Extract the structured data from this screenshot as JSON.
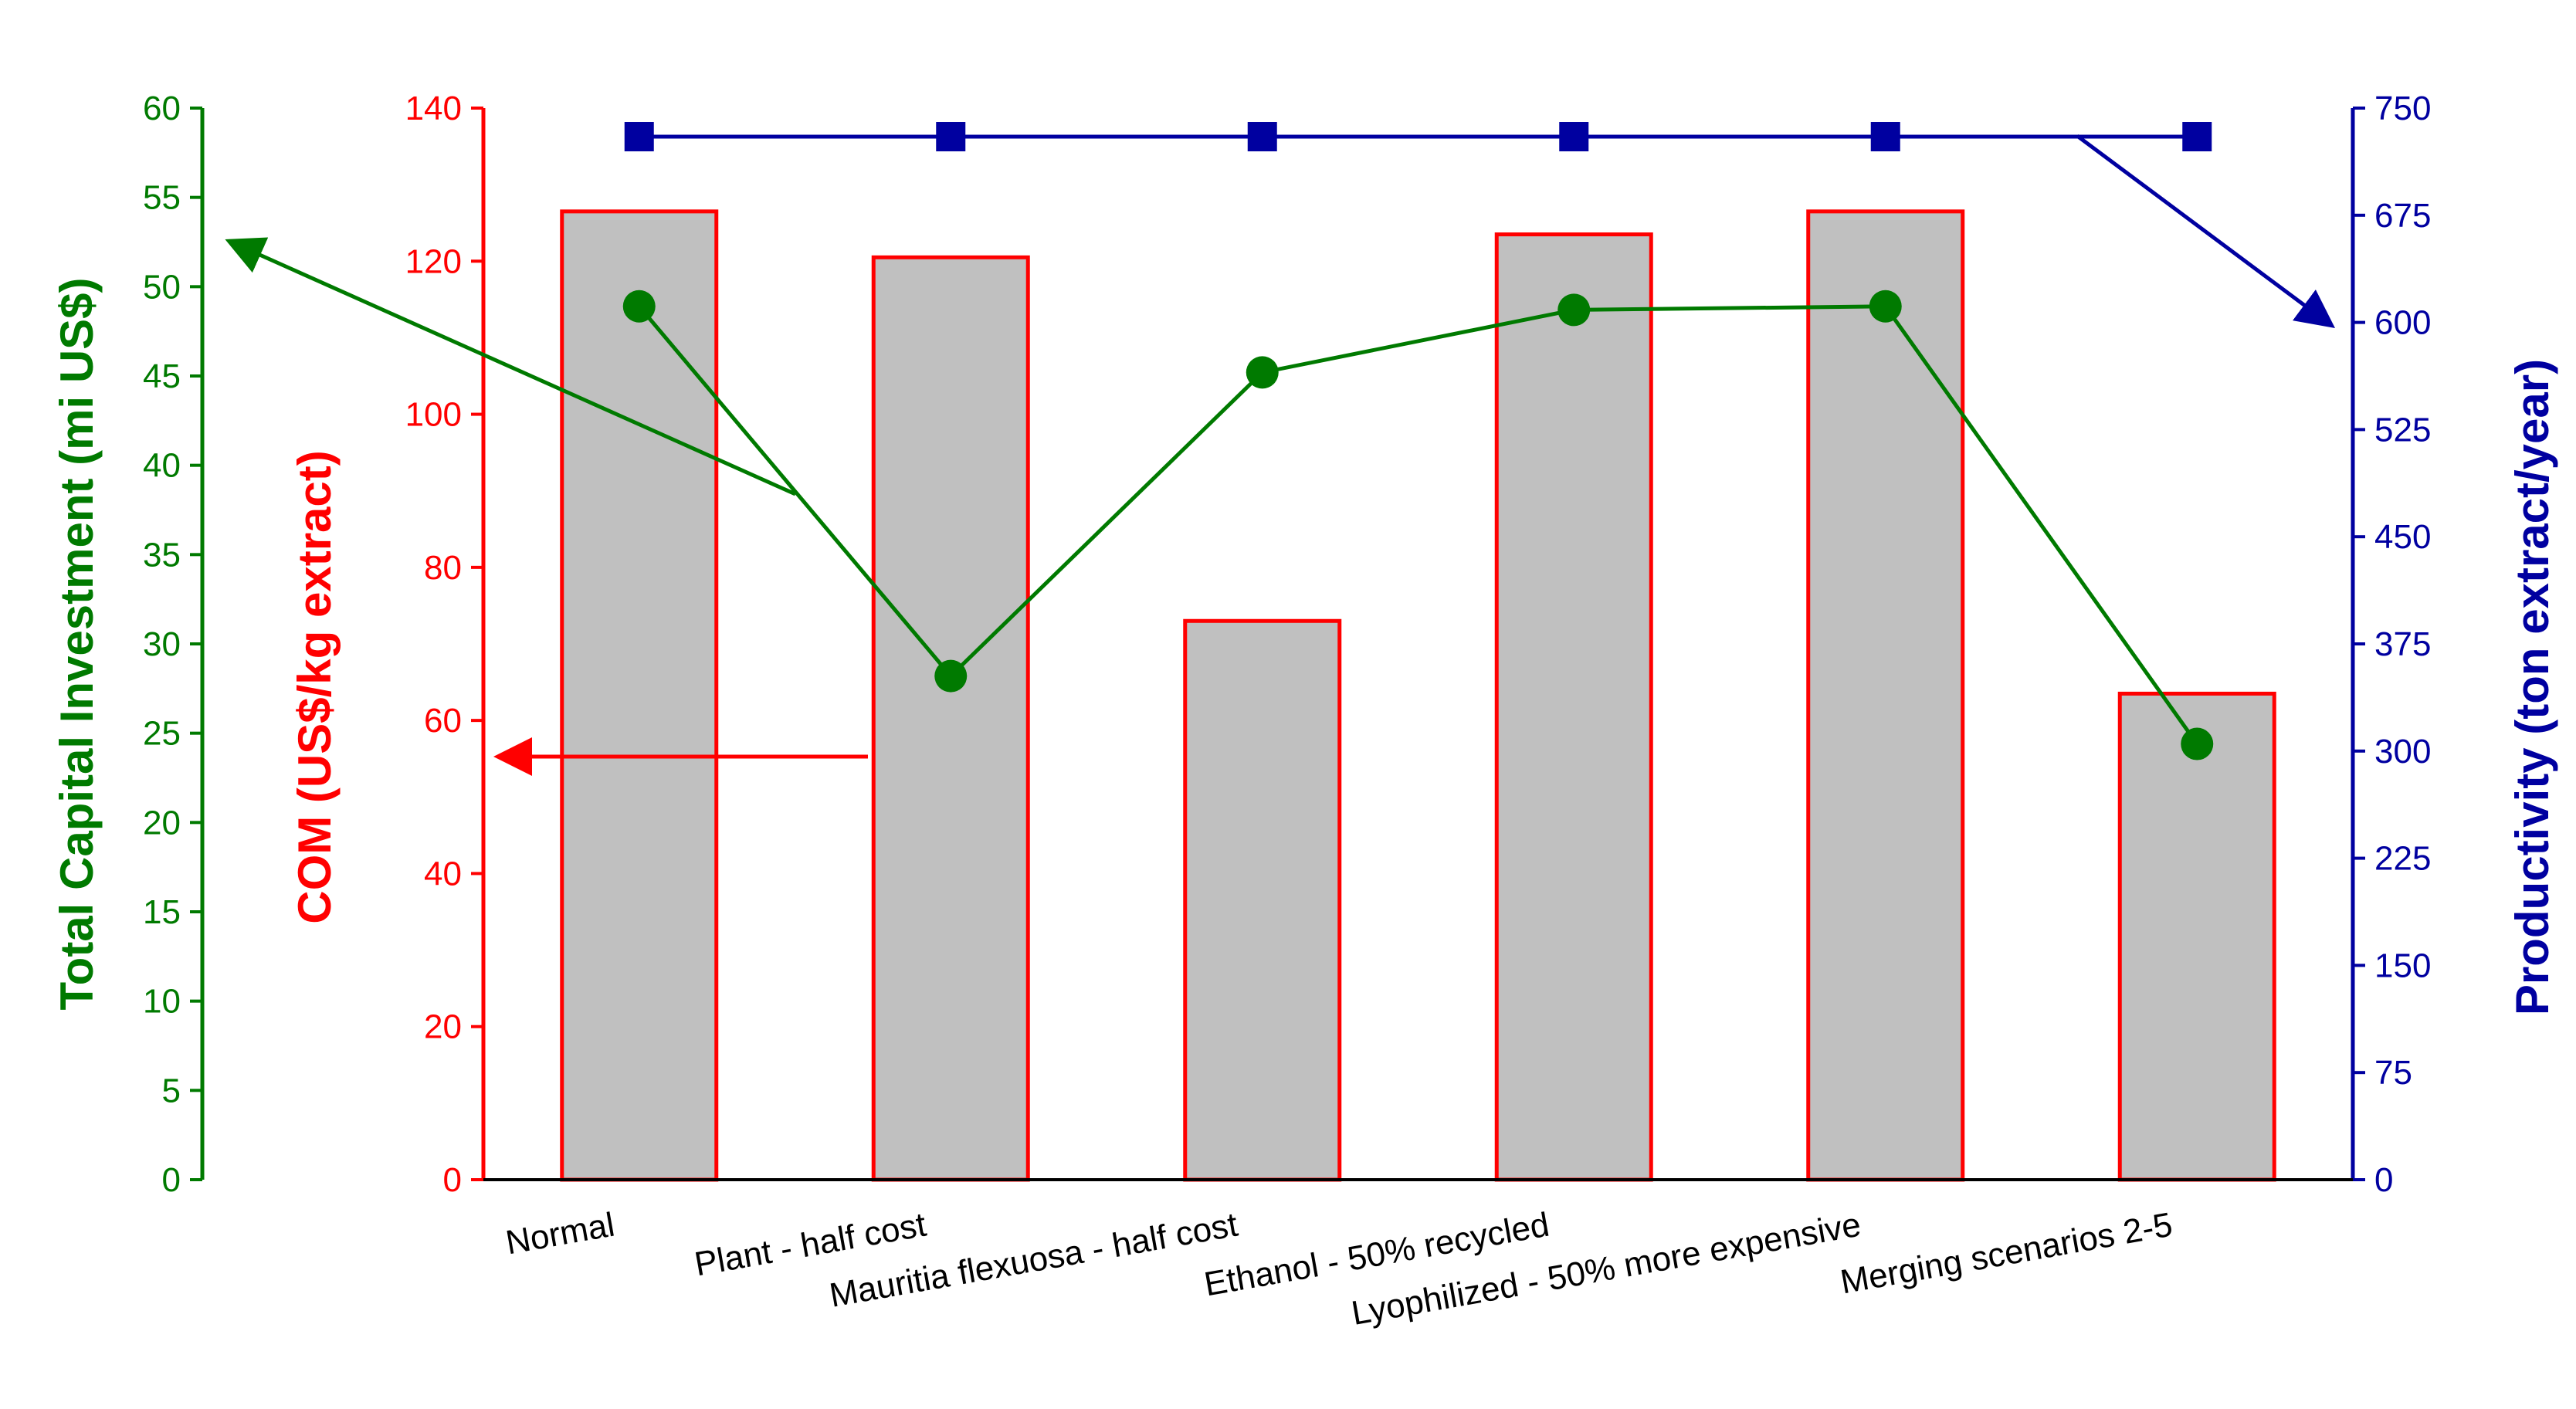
{
  "chart_data": {
    "type": "bar",
    "categories": [
      "Normal",
      "Plant - half cost",
      "Mauritia flexuosa - half cost",
      "Ethanol - 50% recycled",
      "Lyophilized - 50% more expensive",
      "Merging scenarios 2-5"
    ],
    "series": [
      {
        "kind": "bar",
        "axis": "com",
        "color": "#ff0000",
        "fill": "#c0c0c0",
        "values": [
          126.5,
          120.5,
          73.0,
          123.5,
          126.5,
          63.5
        ]
      },
      {
        "kind": "line",
        "axis": "tci",
        "color": "#007a00",
        "marker": "circle",
        "values": [
          48.9,
          28.2,
          45.2,
          48.7,
          48.9,
          24.4
        ]
      },
      {
        "kind": "line",
        "axis": "prod",
        "color": "#0000a0",
        "marker": "square",
        "values": [
          730,
          730,
          730,
          730,
          730,
          730
        ]
      }
    ],
    "axes": {
      "tci": {
        "label": "Total Capital Investment (mi US$)",
        "color": "#007a00",
        "min": 0,
        "max": 60,
        "ticks": [
          0,
          5,
          10,
          15,
          20,
          25,
          30,
          35,
          40,
          45,
          50,
          55,
          60
        ]
      },
      "com": {
        "label": "COM (US$/kg extract)",
        "color": "#ff0000",
        "min": 0,
        "max": 140,
        "ticks": [
          0,
          20,
          40,
          60,
          80,
          100,
          120,
          140
        ]
      },
      "prod": {
        "label": "Productivity (ton extract/year)",
        "color": "#0000a0",
        "min": 0,
        "max": 750,
        "ticks": [
          0,
          75,
          150,
          225,
          300,
          375,
          450,
          525,
          600,
          675,
          750
        ]
      }
    },
    "annotations": [
      {
        "type": "arrow",
        "series": "tci",
        "points_to": "left axis"
      },
      {
        "type": "arrow",
        "series": "com",
        "points_to": "left axis"
      },
      {
        "type": "arrow",
        "series": "prod",
        "points_to": "right axis"
      }
    ],
    "legend": "none",
    "grid": false
  }
}
